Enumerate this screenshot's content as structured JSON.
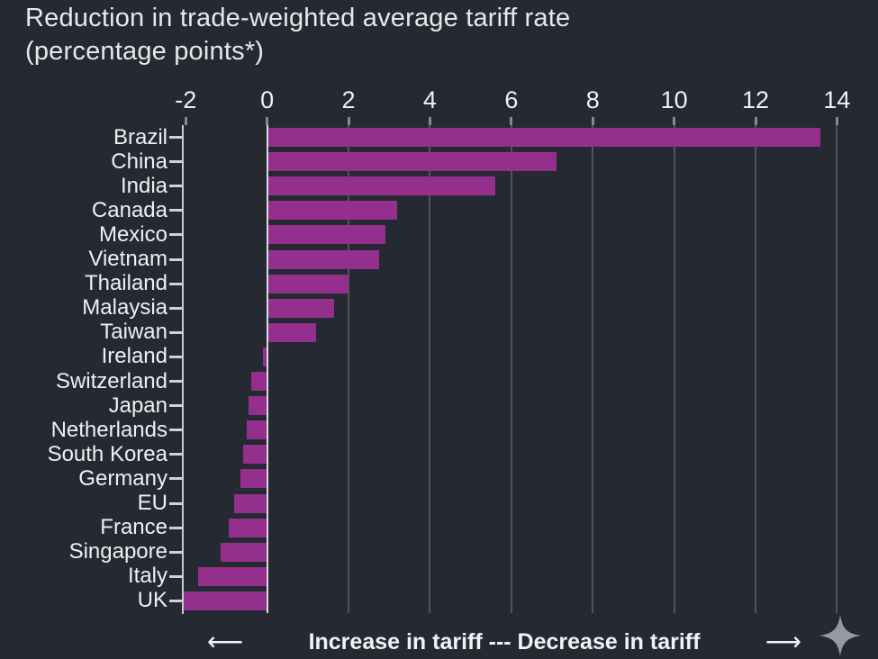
{
  "title": {
    "line1": "Reduction in trade-weighted average tariff rate",
    "line2": "(percentage points*)"
  },
  "footer": {
    "left_arrow": "⟵",
    "label": "Increase in tariff --- Decrease in tariff",
    "right_arrow": "⟶"
  },
  "icons": {
    "sparkle": "four-point-star-icon"
  },
  "colors": {
    "background": "#252932",
    "bar": "#952f8e",
    "gridline": "#4f545c",
    "zero_line": "#d9dcdf",
    "axis_spine": "#c6cad0",
    "text": "#eef0f2",
    "sparkle": "#939aa2"
  },
  "chart_data": {
    "type": "bar",
    "orientation": "horizontal",
    "title": "Reduction in trade-weighted average tariff rate (percentage points*)",
    "xlabel": "",
    "ylabel": "",
    "categories": [
      "Brazil",
      "China",
      "India",
      "Canada",
      "Mexico",
      "Vietnam",
      "Thailand",
      "Malaysia",
      "Taiwan",
      "Ireland",
      "Switzerland",
      "Japan",
      "Netherlands",
      "South Korea",
      "Germany",
      "EU",
      "France",
      "Singapore",
      "Italy",
      "UK"
    ],
    "values": [
      13.6,
      7.1,
      5.6,
      3.2,
      2.9,
      2.75,
      2.0,
      1.65,
      1.2,
      -0.1,
      -0.4,
      -0.45,
      -0.5,
      -0.6,
      -0.65,
      -0.8,
      -0.95,
      -1.15,
      -1.7,
      -2.1
    ],
    "x_ticks": [
      -2,
      0,
      2,
      4,
      6,
      8,
      10,
      12,
      14
    ],
    "x_tick_labels": [
      "-2",
      "0",
      "2",
      "4",
      "6",
      "8",
      "10",
      "12",
      "14"
    ],
    "xlim": [
      -2.05,
      14.3
    ],
    "grid": "vertical",
    "legend_position": "none",
    "annotations": "⟵ Increase in tariff --- Decrease in tariff ⟶"
  }
}
